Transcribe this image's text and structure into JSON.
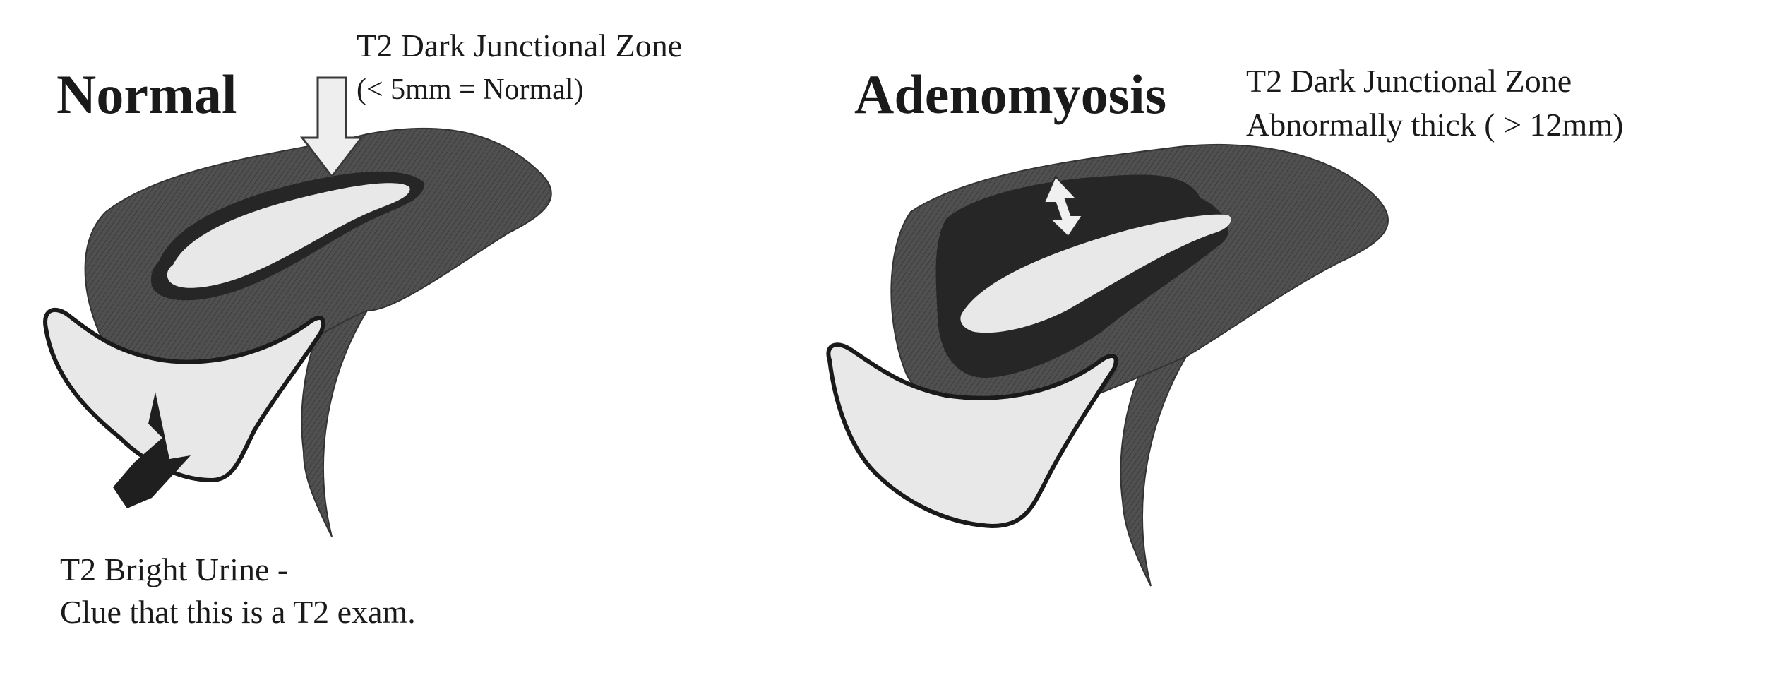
{
  "normal": {
    "heading": "Normal",
    "jz_line1": "T2 Dark Junctional Zone",
    "jz_line2": "(< 5mm = Normal)",
    "urine_line1": "T2 Bright Urine -",
    "urine_line2": "Clue that this is a T2 exam."
  },
  "adenomyosis": {
    "heading": "Adenomyosis",
    "jz_line1": "T2 Dark Junctional Zone",
    "jz_line2": "Abnormally thick ( > 12mm)"
  },
  "colors": {
    "myometrium": "#4d4d4d",
    "junctional_zone": "#262626",
    "bright": "#e8e8e8",
    "outline": "#1a1a1a"
  }
}
